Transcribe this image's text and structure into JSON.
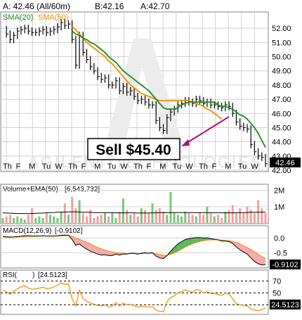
{
  "header": {
    "quote": "A: 42.46 (All/60m)",
    "bid": "B:42.16",
    "ask": "A:42.70",
    "sma20_label": "SMA(20)",
    "sma50_label": "SMA(50)"
  },
  "watermark": "AGILENT TECHNOLOGIES INC COM",
  "sell_label": "Sell $45.40",
  "last_price_badge": "42.46",
  "volume_label": "Volume+EMA(50)",
  "volume_value": "[6,543,732]",
  "macd_label": "MACD(12,26,9)",
  "macd_value": "[-0.9102]",
  "macd_badge": "-0.9102",
  "rsi_label": "RSI(",
  "rsi_label_suffix": ")",
  "rsi_value": "[24.5123]",
  "rsi_badge": "24.5123",
  "colors": {
    "price": "#000000",
    "sma20": "#1a8c1a",
    "sma50": "#f08c00",
    "volume_up": "#78c878",
    "volume_down": "#f0a0a0",
    "macd_pos": "#5cb85c",
    "macd_neg": "#f4aaaa",
    "rsi": "#f08c00",
    "arrow": "#b0107a"
  },
  "chart_data": [
    {
      "type": "line",
      "name": "price",
      "ylim": [
        42,
        53
      ],
      "yticks": [
        42,
        43,
        44,
        45,
        46,
        47,
        48,
        49,
        50,
        51,
        52
      ],
      "xticks": [
        "Th",
        "F",
        "M",
        "Tu",
        "W",
        "Th",
        "F",
        "M",
        "Tu",
        "W",
        "Th",
        "F",
        "M",
        "Tu",
        "W",
        "Th",
        "F",
        "M",
        "Tu",
        "W"
      ],
      "series": [
        {
          "name": "price",
          "values": [
            51.9,
            51.6,
            51.2,
            51.5,
            51.8,
            51.9,
            52.0,
            51.8,
            51.7,
            51.7,
            51.8,
            51.9,
            51.7,
            51.8,
            51.9,
            52.1,
            52.4,
            52.2,
            52.3,
            51.2,
            49.4,
            51.5,
            50.3,
            49.8,
            49.3,
            49.0,
            48.6,
            48.4,
            48.5,
            48.0,
            48.0,
            48.3,
            47.6,
            47.9,
            47.5,
            47.6,
            47.2,
            46.9,
            47.0,
            46.8,
            46.6,
            46.6,
            45.5,
            45.0,
            44.8,
            45.7,
            46.1,
            46.3,
            46.6,
            46.7,
            46.9,
            46.8,
            46.7,
            47.0,
            46.9,
            46.7,
            46.8,
            46.6,
            46.6,
            46.5,
            46.4,
            46.6,
            46.5,
            46.0,
            45.4,
            45.1,
            45.0,
            44.9,
            43.8,
            43.3,
            43.0,
            42.9,
            42.46
          ]
        },
        {
          "name": "SMA(20)",
          "values": [
            null,
            null,
            null,
            null,
            null,
            null,
            null,
            null,
            null,
            null,
            null,
            null,
            null,
            null,
            null,
            null,
            null,
            null,
            null,
            51.8,
            51.6,
            51.5,
            51.3,
            51.2,
            51.0,
            50.9,
            50.7,
            50.5,
            50.3,
            50.0,
            49.8,
            49.6,
            49.3,
            49.0,
            48.8,
            48.6,
            48.4,
            48.2,
            48.0,
            47.8,
            47.6,
            47.3,
            47.0,
            46.7,
            46.4,
            46.3,
            46.3,
            46.3,
            46.4,
            46.6,
            46.7,
            46.8,
            46.8,
            46.8,
            46.8,
            46.8,
            46.8,
            46.8,
            46.8,
            46.6,
            46.5,
            46.5,
            46.4,
            46.3,
            46.1,
            45.9,
            45.8,
            45.6,
            45.3,
            45.0,
            44.6,
            44.1,
            43.6
          ]
        },
        {
          "name": "SMA(50)",
          "values": [
            null,
            null,
            null,
            null,
            null,
            null,
            null,
            null,
            null,
            null,
            null,
            null,
            null,
            null,
            null,
            null,
            null,
            null,
            null,
            52.1,
            51.9,
            51.6,
            51.3,
            51.0,
            50.8,
            50.6,
            50.4,
            50.2,
            50.0,
            49.7,
            49.5,
            49.2,
            48.9,
            48.6,
            48.3,
            48.0,
            47.8,
            47.6,
            47.4,
            47.3,
            47.2,
            47.1,
            47.0,
            46.9,
            46.9,
            46.9,
            46.9,
            46.9,
            46.9,
            46.9,
            46.9,
            46.9,
            46.8,
            46.7,
            46.6,
            46.5,
            46.3,
            46.2,
            46.0,
            45.8,
            45.6
          ]
        }
      ],
      "annotation": {
        "text": "Sell $45.40",
        "value": 45.4
      }
    },
    {
      "type": "bar",
      "name": "volume",
      "yticks_labels": [
        "2M",
        "1M"
      ],
      "yticks": [
        2,
        1
      ],
      "ylim": [
        0,
        2.2
      ],
      "values": [
        0.3,
        0.4,
        0.5,
        0.3,
        0.4,
        0.3,
        0.2,
        0.5,
        0.9,
        0.3,
        0.4,
        0.3,
        0.6,
        0.5,
        0.4,
        0.3,
        0.7,
        1.2,
        0.5,
        1.6,
        0.9,
        1.4,
        0.6,
        0.4,
        0.8,
        0.3,
        0.4,
        0.5,
        0.6,
        0.4,
        0.6,
        0.3,
        0.7,
        1.5,
        0.8,
        0.5,
        0.6,
        0.4,
        0.9,
        0.8,
        0.6,
        1.2,
        0.8,
        0.9,
        0.7,
        0.5,
        1.9,
        0.6,
        0.5,
        0.4,
        0.7,
        0.6,
        0.5,
        0.4,
        0.6,
        0.5,
        1.0,
        0.6,
        0.4,
        0.5,
        0.3,
        0.7,
        0.8,
        1.1,
        0.6,
        0.9,
        0.6,
        1.0,
        0.8,
        0.6,
        1.4,
        0.9,
        0.6
      ],
      "ema": [
        0.62,
        0.61,
        0.6,
        0.59,
        0.58,
        0.58,
        0.58,
        0.58,
        0.58,
        0.59,
        0.6,
        0.61,
        0.62,
        0.63,
        0.64,
        0.66,
        0.66,
        0.67,
        0.68,
        0.68,
        0.68,
        0.67,
        0.66,
        0.66,
        0.65,
        0.64,
        0.63,
        0.63,
        0.63,
        0.63,
        0.63,
        0.62,
        0.62,
        0.62,
        0.62,
        0.62,
        0.62,
        0.61,
        0.61,
        0.61,
        0.61,
        0.62,
        0.62,
        0.63,
        0.63,
        0.63,
        0.64,
        0.64,
        0.64,
        0.64,
        0.64,
        0.64,
        0.63,
        0.63,
        0.63,
        0.63,
        0.63,
        0.63,
        0.63,
        0.63,
        0.62,
        0.62,
        0.62,
        0.62,
        0.63,
        0.63,
        0.64,
        0.64,
        0.65,
        0.65,
        0.66,
        0.66,
        0.66
      ]
    },
    {
      "type": "line",
      "name": "MACD",
      "yticks": [
        0.0,
        -0.5
      ],
      "ylim": [
        -1.0,
        0.35
      ],
      "series": [
        {
          "name": "macd",
          "values": [
            0.05,
            0.04,
            0.03,
            0.04,
            0.05,
            0.06,
            0.08,
            0.08,
            0.07,
            0.07,
            0.07,
            0.08,
            0.07,
            0.07,
            0.07,
            0.08,
            0.1,
            0.1,
            0.1,
            -0.05,
            -0.25,
            -0.2,
            -0.3,
            -0.38,
            -0.45,
            -0.5,
            -0.55,
            -0.58,
            -0.57,
            -0.6,
            -0.6,
            -0.55,
            -0.58,
            -0.55,
            -0.55,
            -0.52,
            -0.52,
            -0.55,
            -0.52,
            -0.5,
            -0.52,
            -0.5,
            -0.62,
            -0.68,
            -0.7,
            -0.6,
            -0.45,
            -0.32,
            -0.2,
            -0.12,
            -0.05,
            -0.02,
            0.0,
            0.02,
            0.02,
            0.0,
            0.01,
            -0.02,
            -0.04,
            -0.06,
            -0.1,
            -0.1,
            -0.12,
            -0.18,
            -0.3,
            -0.4,
            -0.48,
            -0.55,
            -0.68,
            -0.8,
            -0.88,
            -0.92,
            -0.91
          ]
        },
        {
          "name": "signal",
          "values": [
            0.05,
            0.05,
            0.04,
            0.04,
            0.04,
            0.05,
            0.05,
            0.06,
            0.06,
            0.06,
            0.07,
            0.07,
            0.07,
            0.07,
            0.07,
            0.07,
            0.08,
            0.08,
            0.09,
            0.06,
            0.0,
            -0.04,
            -0.09,
            -0.14,
            -0.2,
            -0.26,
            -0.32,
            -0.37,
            -0.41,
            -0.45,
            -0.48,
            -0.5,
            -0.51,
            -0.52,
            -0.53,
            -0.53,
            -0.53,
            -0.53,
            -0.53,
            -0.52,
            -0.52,
            -0.52,
            -0.54,
            -0.56,
            -0.59,
            -0.59,
            -0.56,
            -0.51,
            -0.45,
            -0.38,
            -0.31,
            -0.25,
            -0.2,
            -0.15,
            -0.12,
            -0.09,
            -0.07,
            -0.06,
            -0.06,
            -0.06,
            -0.07,
            -0.08,
            -0.09,
            -0.11,
            -0.15,
            -0.2,
            -0.26,
            -0.32,
            -0.39,
            -0.47,
            -0.55,
            -0.63,
            -0.69
          ]
        }
      ]
    },
    {
      "type": "line",
      "name": "RSI",
      "yticks": [
        70,
        50,
        30
      ],
      "ylim": [
        15,
        85
      ],
      "series": [
        {
          "name": "rsi",
          "values": [
            55,
            52,
            48,
            53,
            57,
            60,
            62,
            58,
            56,
            57,
            58,
            60,
            57,
            58,
            60,
            63,
            67,
            64,
            65,
            40,
            28,
            55,
            40,
            36,
            33,
            31,
            29,
            28,
            30,
            26,
            28,
            34,
            28,
            33,
            30,
            31,
            28,
            26,
            28,
            27,
            26,
            27,
            21,
            19,
            18,
            35,
            42,
            45,
            50,
            52,
            55,
            53,
            51,
            56,
            54,
            50,
            52,
            49,
            49,
            47,
            46,
            50,
            48,
            40,
            32,
            30,
            29,
            28,
            23,
            21,
            20,
            22,
            24.5
          ]
        }
      ]
    }
  ]
}
